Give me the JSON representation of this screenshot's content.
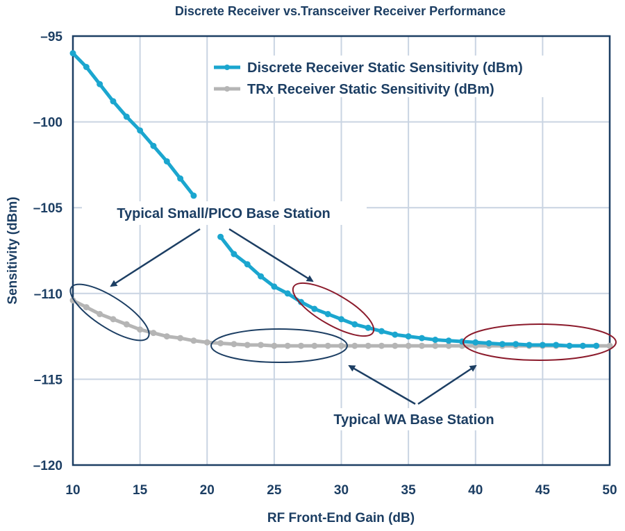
{
  "chart_data": {
    "type": "line",
    "title": "Discrete Receiver vs.Transceiver Receiver Performance",
    "xlabel": "RF Front-End Gain (dB)",
    "ylabel": "Sensitivity (dBm)",
    "xlim": [
      10,
      50
    ],
    "ylim": [
      -120,
      -95
    ],
    "xticks": [
      10,
      15,
      20,
      25,
      30,
      35,
      40,
      45,
      50
    ],
    "yticks": [
      -95,
      -100,
      -105,
      -110,
      -115,
      -120
    ],
    "ytick_labels": [
      "–95",
      "–100",
      "–105",
      "–110",
      "–115",
      "–120"
    ],
    "grid": true,
    "legend_position": "top-right",
    "series": [
      {
        "name": "Discrete Receiver Static Sensitivity (dBm)",
        "color": "#1ba6cf",
        "x": [
          10,
          11,
          12,
          13,
          14,
          15,
          16,
          17,
          18,
          19,
          21,
          22,
          23,
          24,
          25,
          26,
          27,
          28,
          29,
          30,
          31,
          32,
          33,
          34,
          35,
          36,
          37,
          38,
          39,
          40,
          41,
          42,
          43,
          44,
          45,
          46,
          47,
          48,
          49
        ],
        "y": [
          -96.0,
          -96.8,
          -97.8,
          -98.8,
          -99.7,
          -100.5,
          -101.4,
          -102.3,
          -103.3,
          -104.3,
          -106.7,
          -107.7,
          -108.3,
          -109.0,
          -109.6,
          -110.0,
          -110.5,
          -110.9,
          -111.2,
          -111.5,
          -111.8,
          -112.0,
          -112.2,
          -112.4,
          -112.5,
          -112.6,
          -112.7,
          -112.75,
          -112.8,
          -112.85,
          -112.9,
          -112.95,
          -112.95,
          -113.0,
          -113.0,
          -113.0,
          -113.05,
          -113.05,
          -113.05
        ]
      },
      {
        "name": "TRx Receiver Static Sensitivity (dBm)",
        "color": "#b5b5b5",
        "x": [
          10,
          11,
          12,
          13,
          14,
          15,
          16,
          17,
          18,
          19,
          20,
          21,
          22,
          23,
          24,
          25,
          26,
          27,
          28,
          29,
          30,
          31,
          32,
          33,
          34,
          35,
          36,
          37,
          38,
          39,
          40,
          41,
          42,
          43,
          44,
          45,
          46,
          47,
          48,
          49,
          50
        ],
        "y": [
          -110.4,
          -110.8,
          -111.2,
          -111.5,
          -111.8,
          -112.1,
          -112.3,
          -112.5,
          -112.6,
          -112.75,
          -112.85,
          -112.9,
          -112.95,
          -113.0,
          -113.0,
          -113.05,
          -113.05,
          -113.05,
          -113.05,
          -113.05,
          -113.05,
          -113.05,
          -113.05,
          -113.05,
          -113.05,
          -113.05,
          -113.05,
          -113.05,
          -113.05,
          -113.05,
          -113.05,
          -113.05,
          -113.05,
          -113.05,
          -113.05,
          -113.05,
          -113.05,
          -113.05,
          -113.05,
          -113.05,
          -113.05
        ]
      }
    ],
    "annotations": [
      {
        "text": "Typical Small/PICO Base Station",
        "color": "#1c3e63"
      },
      {
        "text": "Typical WA Base Station",
        "color": "#1c3e63"
      }
    ],
    "highlight_colors": {
      "navy": "#1c3e63",
      "maroon": "#8b1a2b"
    }
  }
}
